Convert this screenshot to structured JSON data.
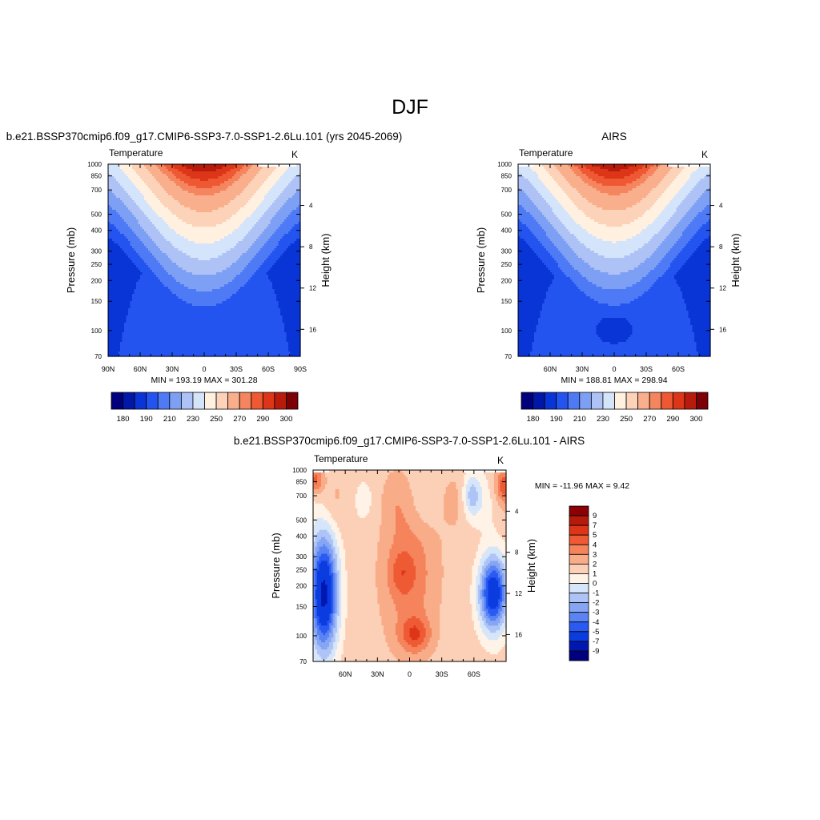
{
  "figure": {
    "title": "DJF"
  },
  "colors": {
    "temperature_palette": [
      "#00007c",
      "#0017a8",
      "#0a35d6",
      "#2454f0",
      "#4e7af6",
      "#7ea0f4",
      "#aec2f6",
      "#d4e4fa",
      "#fff0e0",
      "#fcd2b8",
      "#f9ae8c",
      "#f5855e",
      "#ee5833",
      "#dd3518",
      "#b81b0c",
      "#7d0006"
    ],
    "difference_palette": [
      "#00007c",
      "#0018b0",
      "#0a3ce0",
      "#2a5af2",
      "#5a84f4",
      "#86a6f4",
      "#aec4f6",
      "#d6e6fa",
      "#fff2e6",
      "#fcd0b6",
      "#f9ac88",
      "#f5845c",
      "#ee5a34",
      "#de3418",
      "#b61a0c",
      "#8a0004"
    ],
    "missing": "#ffffff"
  },
  "chart_data": [
    {
      "type": "heatmap",
      "title": "b.e21.BSSP370cmip6.f09_g17.CMIP6-SSP3-7.0-SSP1-2.6Lu.101 (yrs 2045-2069)",
      "left_label": "Temperature",
      "right_label": "K",
      "ylabel": "Pressure (mb)",
      "y2label": "Height (km)",
      "x_ticks": [
        "90N",
        "60N",
        "30N",
        "0",
        "30S",
        "60S",
        "90S"
      ],
      "y_ticks": [
        "70",
        "100",
        "150",
        "200",
        "250",
        "300",
        "400",
        "500",
        "700",
        "850",
        "1000"
      ],
      "y2_ticks": [
        "16",
        "12",
        "8",
        "4"
      ],
      "stats": "MIN = 193.19  MAX = 301.28",
      "colorbar_labels": [
        "180",
        "190",
        "210",
        "230",
        "250",
        "270",
        "290",
        "300"
      ],
      "x_range": [
        90,
        -90
      ],
      "pressure_range_mb": [
        70,
        1000
      ],
      "value_range": [
        193.19,
        301.28
      ]
    },
    {
      "type": "heatmap",
      "title": "AIRS",
      "left_label": "Temperature",
      "right_label": "K",
      "ylabel": "Pressure (mb)",
      "y2label": "Height (km)",
      "x_ticks": [
        "60N",
        "30N",
        "0",
        "30S",
        "60S"
      ],
      "y_ticks": [
        "70",
        "100",
        "150",
        "200",
        "250",
        "300",
        "400",
        "500",
        "700",
        "850",
        "1000"
      ],
      "y2_ticks": [
        "16",
        "12",
        "8",
        "4"
      ],
      "stats": "MIN = 188.81  MAX = 298.94",
      "colorbar_labels": [
        "180",
        "190",
        "210",
        "230",
        "250",
        "270",
        "290",
        "300"
      ],
      "x_range": [
        90,
        -90
      ],
      "pressure_range_mb": [
        70,
        1000
      ],
      "value_range": [
        188.81,
        298.94
      ]
    },
    {
      "type": "heatmap",
      "title": "b.e21.BSSP370cmip6.f09_g17.CMIP6-SSP3-7.0-SSP1-2.6Lu.101 - AIRS",
      "left_label": "Temperature",
      "right_label": "K",
      "ylabel": "Pressure (mb)",
      "y2label": "Height (km)",
      "x_ticks": [
        "60N",
        "30N",
        "0",
        "30S",
        "60S"
      ],
      "y_ticks": [
        "70",
        "100",
        "150",
        "200",
        "250",
        "300",
        "400",
        "500",
        "700",
        "850",
        "1000"
      ],
      "y2_ticks": [
        "16",
        "12",
        "8",
        "4"
      ],
      "stats": "MIN = -11.96  MAX =   9.42",
      "colorbar_labels": [
        "9",
        "7",
        "5",
        "4",
        "3",
        "2",
        "1",
        "0",
        "-1",
        "-2",
        "-3",
        "-4",
        "-5",
        "-7",
        "-9"
      ],
      "x_range": [
        90,
        -90
      ],
      "pressure_range_mb": [
        70,
        1000
      ],
      "value_range": [
        -11.96,
        9.42
      ]
    }
  ]
}
